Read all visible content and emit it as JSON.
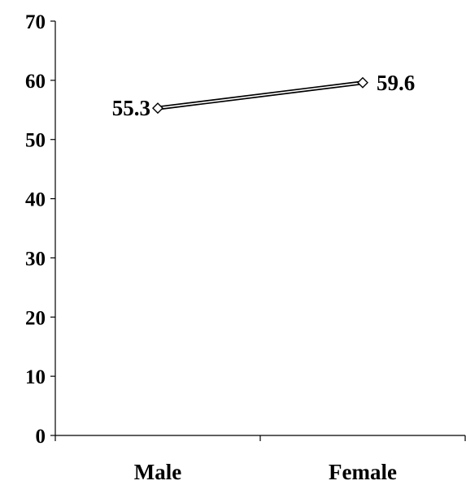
{
  "chart_data": {
    "type": "line",
    "categories": [
      "Male",
      "Female"
    ],
    "series": [
      {
        "values": [
          55.3,
          59.6
        ],
        "marker": "diamond",
        "color": "#000000"
      }
    ],
    "data_labels": [
      "55.3",
      "59.6"
    ],
    "ylim": [
      0,
      70
    ],
    "yticks": [
      0,
      10,
      20,
      30,
      40,
      50,
      60,
      70
    ],
    "ytick_labels": [
      "0",
      "10",
      "20",
      "30",
      "40",
      "50",
      "60",
      "70"
    ],
    "title": "",
    "xlabel": "",
    "ylabel": "",
    "grid": false,
    "legend": "none",
    "line_style": "double"
  }
}
